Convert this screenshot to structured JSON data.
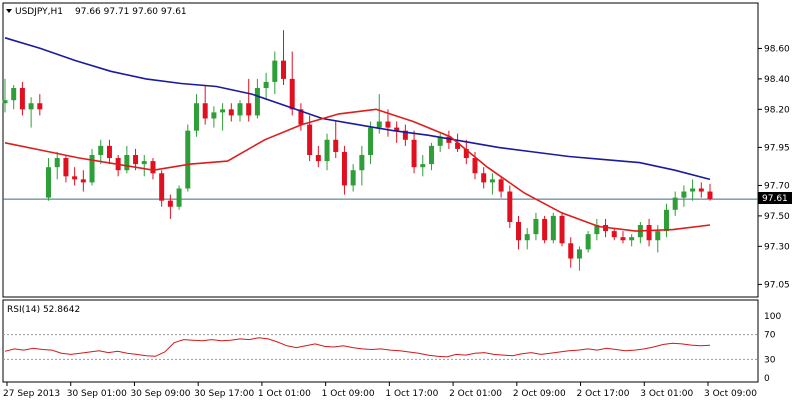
{
  "header": {
    "symbol_text": "USDJPY,H1",
    "ohlc_text": "97.66 97.71 97.60 97.61"
  },
  "indicator": {
    "label": "RSI(14) 52.8642",
    "levels": [
      "100",
      "70",
      "30",
      "0"
    ]
  },
  "colors": {
    "bull": "#2e9e38",
    "bear": "#e01020",
    "ma_fast": "#dd1d1d",
    "ma_slow": "#1a1a9e",
    "rsi": "#d31919",
    "price_line": "#3a6e86"
  },
  "chart_data": {
    "type": "candlestick",
    "symbol": "USDJPY",
    "timeframe": "H1",
    "current_price": "97.61",
    "price_axis": {
      "min": 97.0,
      "max": 98.8,
      "ticks": [
        "98.60",
        "98.40",
        "98.20",
        "97.95",
        "97.70",
        "97.50",
        "97.30",
        "97.05"
      ]
    },
    "time_labels": [
      "27 Sep 2013",
      "30 Sep 01:00",
      "30 Sep 09:00",
      "30 Sep 17:00",
      "1 Oct 01:00",
      "1 Oct 09:00",
      "1 Oct 17:00",
      "2 Oct 01:00",
      "2 Oct 09:00",
      "2 Oct 17:00",
      "3 Oct 01:00",
      "3 Oct 09:00"
    ],
    "candles": [
      [
        98.24,
        98.4,
        98.18,
        98.26
      ],
      [
        98.26,
        98.36,
        98.2,
        98.34
      ],
      [
        98.34,
        98.38,
        98.16,
        98.2
      ],
      [
        98.2,
        98.28,
        98.08,
        98.24
      ],
      [
        98.24,
        98.3,
        98.16,
        98.2
      ],
      [
        97.62,
        97.88,
        97.6,
        97.82
      ],
      [
        97.82,
        97.92,
        97.74,
        97.88
      ],
      [
        97.88,
        97.9,
        97.72,
        97.76
      ],
      [
        97.76,
        97.82,
        97.7,
        97.74
      ],
      [
        97.74,
        97.8,
        97.66,
        97.72
      ],
      [
        97.72,
        97.94,
        97.7,
        97.9
      ],
      [
        97.9,
        98.0,
        97.84,
        97.96
      ],
      [
        97.96,
        98.0,
        97.84,
        97.88
      ],
      [
        97.88,
        97.9,
        97.76,
        97.8
      ],
      [
        97.8,
        97.96,
        97.78,
        97.9
      ],
      [
        97.9,
        97.94,
        97.8,
        97.84
      ],
      [
        97.84,
        97.9,
        97.76,
        97.86
      ],
      [
        97.86,
        97.88,
        97.74,
        97.78
      ],
      [
        97.78,
        97.8,
        97.56,
        97.6
      ],
      [
        97.6,
        97.64,
        97.48,
        97.56
      ],
      [
        97.56,
        97.7,
        97.54,
        97.68
      ],
      [
        97.68,
        98.1,
        97.66,
        98.06
      ],
      [
        98.06,
        98.3,
        98.02,
        98.24
      ],
      [
        98.24,
        98.36,
        98.1,
        98.14
      ],
      [
        98.14,
        98.22,
        98.08,
        98.18
      ],
      [
        98.18,
        98.24,
        98.06,
        98.2
      ],
      [
        98.2,
        98.24,
        98.12,
        98.16
      ],
      [
        98.16,
        98.26,
        98.12,
        98.24
      ],
      [
        98.24,
        98.4,
        98.12,
        98.16
      ],
      [
        98.16,
        98.4,
        98.14,
        98.34
      ],
      [
        98.34,
        98.44,
        98.26,
        98.38
      ],
      [
        98.38,
        98.58,
        98.3,
        98.52
      ],
      [
        98.52,
        98.72,
        98.36,
        98.4
      ],
      [
        98.4,
        98.58,
        98.16,
        98.2
      ],
      [
        98.2,
        98.24,
        98.06,
        98.1
      ],
      [
        98.1,
        98.16,
        97.86,
        97.9
      ],
      [
        97.9,
        97.96,
        97.82,
        97.86
      ],
      [
        97.86,
        98.04,
        97.8,
        98.0
      ],
      [
        98.0,
        98.12,
        97.88,
        97.92
      ],
      [
        97.92,
        97.96,
        97.64,
        97.7
      ],
      [
        97.7,
        97.84,
        97.66,
        97.8
      ],
      [
        97.8,
        97.96,
        97.7,
        97.9
      ],
      [
        97.9,
        98.12,
        97.84,
        98.08
      ],
      [
        98.08,
        98.3,
        98.04,
        98.12
      ],
      [
        98.12,
        98.2,
        98.02,
        98.08
      ],
      [
        98.08,
        98.12,
        97.98,
        98.06
      ],
      [
        98.06,
        98.1,
        97.96,
        98.0
      ],
      [
        98.0,
        98.06,
        97.78,
        97.82
      ],
      [
        97.82,
        97.9,
        97.76,
        97.84
      ],
      [
        97.84,
        97.98,
        97.8,
        97.96
      ],
      [
        97.96,
        98.04,
        97.92,
        98.02
      ],
      [
        98.02,
        98.06,
        97.94,
        97.98
      ],
      [
        97.98,
        98.04,
        97.92,
        97.94
      ],
      [
        97.94,
        98.0,
        97.84,
        97.88
      ],
      [
        97.88,
        97.92,
        97.74,
        97.78
      ],
      [
        97.78,
        97.82,
        97.68,
        97.72
      ],
      [
        97.72,
        97.78,
        97.64,
        97.74
      ],
      [
        97.74,
        97.76,
        97.62,
        97.66
      ],
      [
        97.66,
        97.7,
        97.42,
        97.46
      ],
      [
        97.46,
        97.5,
        97.28,
        97.34
      ],
      [
        97.34,
        97.42,
        97.28,
        97.38
      ],
      [
        97.38,
        97.52,
        97.34,
        97.48
      ],
      [
        97.48,
        97.5,
        97.32,
        97.34
      ],
      [
        97.34,
        97.52,
        97.32,
        97.5
      ],
      [
        97.5,
        97.52,
        97.3,
        97.32
      ],
      [
        97.32,
        97.36,
        97.16,
        97.22
      ],
      [
        97.22,
        97.3,
        97.14,
        97.28
      ],
      [
        97.28,
        97.4,
        97.26,
        97.38
      ],
      [
        97.38,
        97.48,
        97.34,
        97.44
      ],
      [
        97.44,
        97.48,
        97.36,
        97.4
      ],
      [
        97.4,
        97.42,
        97.34,
        97.36
      ],
      [
        97.36,
        97.4,
        97.32,
        97.34
      ],
      [
        97.34,
        97.38,
        97.3,
        97.36
      ],
      [
        97.36,
        97.46,
        97.32,
        97.44
      ],
      [
        97.44,
        97.48,
        97.3,
        97.34
      ],
      [
        97.34,
        97.44,
        97.26,
        97.4
      ],
      [
        97.4,
        97.58,
        97.36,
        97.54
      ],
      [
        97.54,
        97.66,
        97.5,
        97.62
      ],
      [
        97.62,
        97.7,
        97.56,
        97.66
      ],
      [
        97.66,
        97.74,
        97.6,
        97.68
      ],
      [
        97.68,
        97.72,
        97.62,
        97.66
      ],
      [
        97.66,
        97.71,
        97.6,
        97.61
      ]
    ],
    "ma_fast": [
      97.98,
      97.93,
      97.88,
      97.84,
      97.8,
      97.84,
      97.86,
      98.0,
      98.1,
      98.17,
      98.2,
      98.12,
      98.02,
      97.82,
      97.65,
      97.52,
      97.43,
      97.4,
      97.41,
      97.44
    ],
    "ma_slow": [
      98.67,
      98.6,
      98.52,
      98.45,
      98.4,
      98.37,
      98.35,
      98.3,
      98.22,
      98.14,
      98.1,
      98.06,
      98.03,
      97.99,
      97.95,
      97.92,
      97.89,
      97.87,
      97.85,
      97.8,
      97.74
    ],
    "rsi": [
      43,
      47,
      45,
      48,
      46,
      45,
      40,
      38,
      40,
      42,
      44,
      41,
      43,
      40,
      38,
      36,
      35,
      42,
      57,
      62,
      61,
      60,
      62,
      60,
      61,
      63,
      62,
      65,
      63,
      58,
      52,
      49,
      52,
      55,
      51,
      50,
      52,
      49,
      47,
      46,
      47,
      45,
      44,
      42,
      40,
      37,
      35,
      34,
      38,
      37,
      40,
      41,
      38,
      37,
      36,
      39,
      41,
      38,
      40,
      42,
      44,
      45,
      47,
      45,
      48,
      46,
      44,
      45,
      47,
      50,
      54,
      56,
      55,
      53,
      52,
      52.86
    ]
  }
}
